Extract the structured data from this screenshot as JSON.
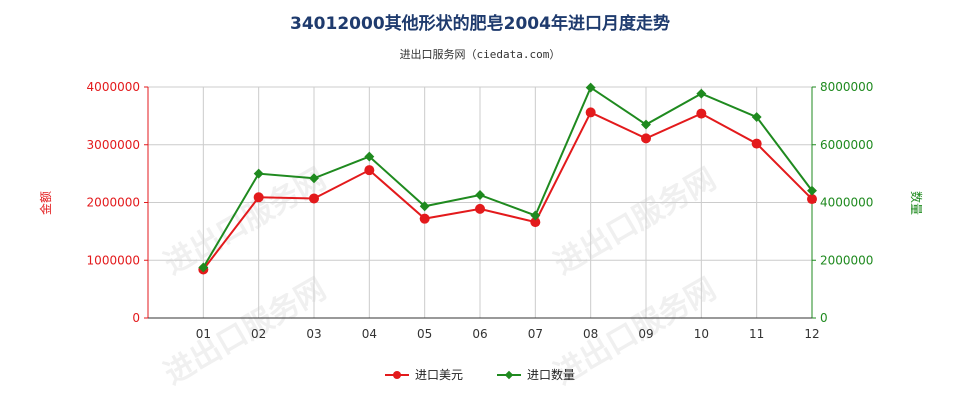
{
  "title": "34012000其他形状的肥皂2004年进口月度走势",
  "subtitle": "进出口服务网（ciedata.com）",
  "watermark": "进出口服务网",
  "colors": {
    "usd": "#e31a1c",
    "qty": "#1f8a1f",
    "grid": "#cccccc",
    "axis": "#333333"
  },
  "chart_data": {
    "type": "line",
    "categories": [
      "01",
      "02",
      "03",
      "04",
      "05",
      "06",
      "07",
      "08",
      "09",
      "10",
      "11",
      "12"
    ],
    "y_left": {
      "label": "金额",
      "ylim": [
        0,
        4000000
      ],
      "ticks": [
        0,
        1000000,
        2000000,
        3000000,
        4000000
      ]
    },
    "y_right": {
      "label": "数量",
      "ylim": [
        0,
        8000000
      ],
      "ticks": [
        0,
        2000000,
        4000000,
        6000000,
        8000000
      ]
    },
    "grid": true,
    "legend_position": "bottom",
    "series": [
      {
        "name": "进口美元",
        "axis": "left",
        "color": "#e31a1c",
        "values": [
          840000,
          2090000,
          2070000,
          2560000,
          1720000,
          1890000,
          1660000,
          3560000,
          3110000,
          3540000,
          3020000,
          2060000
        ]
      },
      {
        "name": "进口数量",
        "axis": "right",
        "color": "#1f8a1f",
        "values": [
          1750000,
          5000000,
          4840000,
          5590000,
          3870000,
          4260000,
          3550000,
          7980000,
          6700000,
          7770000,
          6960000,
          4410000
        ]
      }
    ]
  }
}
